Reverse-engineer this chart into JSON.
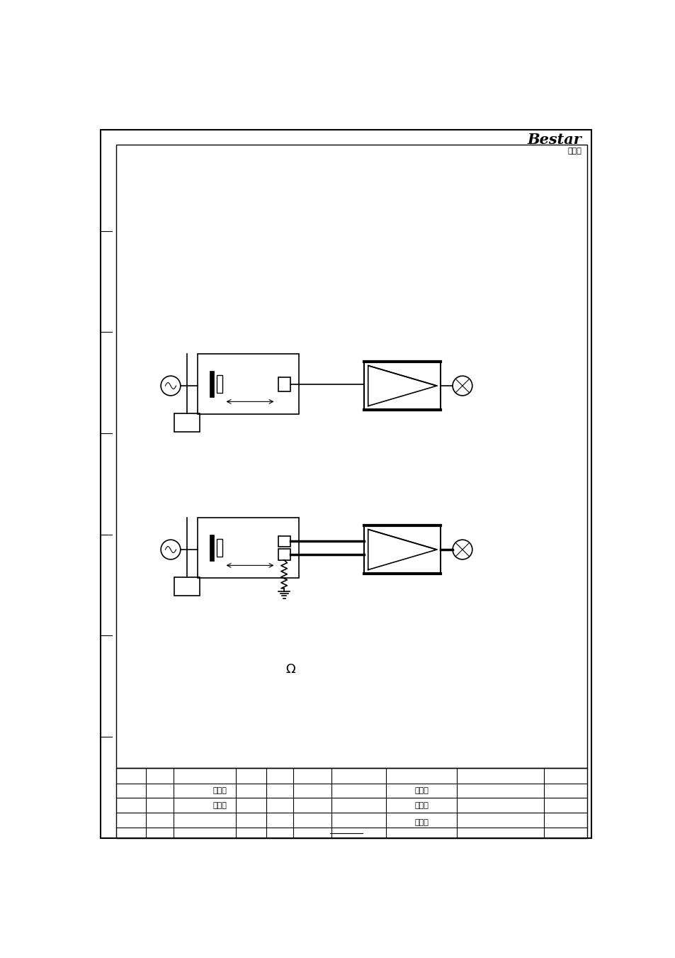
{
  "bg_color": "#ffffff",
  "line_color": "#000000",
  "page_width": 9.54,
  "page_height": 13.51,
  "logo_text": "Bestar",
  "logo_sub": "博士通",
  "omega_text": "Ω",
  "chinese_names": [
    "假雪晴",
    "吴家金",
    "假雪晴",
    "邓晓轩",
    "李红元"
  ]
}
